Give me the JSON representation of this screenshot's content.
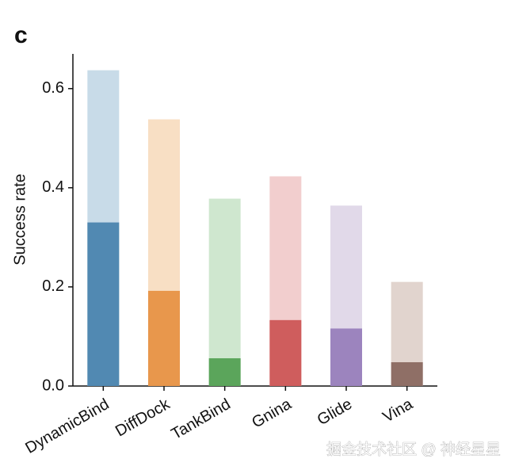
{
  "chart_data": {
    "type": "bar",
    "barmode": "overlay",
    "panel_label": "c",
    "ylabel": "Success rate",
    "categories": [
      "DynamicBind",
      "DiffDock",
      "TankBind",
      "Gnina",
      "Glide",
      "Vina"
    ],
    "series": [
      {
        "colors": [
          "#c8dbe8",
          "#f8dfc4",
          "#cfe7cf",
          "#f2cece",
          "#e1d9e9",
          "#e1d4ce"
        ],
        "values": [
          0.637,
          0.538,
          0.378,
          0.423,
          0.364,
          0.21
        ]
      },
      {
        "colors": [
          "#5189b2",
          "#e8974c",
          "#5ba55b",
          "#cf5d5d",
          "#9c84be",
          "#8f6f66"
        ],
        "values": [
          0.33,
          0.192,
          0.056,
          0.133,
          0.116,
          0.048
        ]
      }
    ],
    "ylim": [
      0,
      0.67
    ],
    "yticks": [
      {
        "value": 0,
        "label": "0.0"
      },
      0.2,
      0.4,
      0.6
    ],
    "watermark": "掘金技术社区 @ 神经星星"
  }
}
